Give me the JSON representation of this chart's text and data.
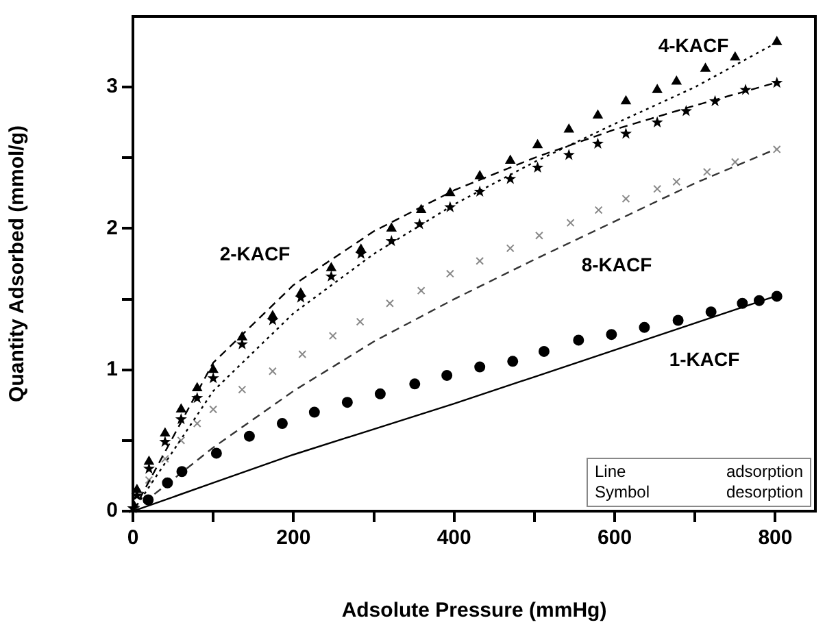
{
  "chart_data": {
    "type": "line",
    "xlabel": "Adsolute Pressure (mmHg)",
    "ylabel": "Quantity Adsorbed (mmol/g)",
    "xlim": [
      0,
      850
    ],
    "ylim": [
      0,
      3.5
    ],
    "xticks": [
      0,
      {
        "value": 100,
        "label": null
      },
      200,
      {
        "value": 300,
        "label": null
      },
      400,
      {
        "value": 500,
        "label": null
      },
      600,
      {
        "value": 700,
        "label": null
      },
      800
    ],
    "yticks": [
      0,
      {
        "value": 0.5,
        "label": null
      },
      1,
      {
        "value": 1.5,
        "label": null
      },
      2,
      {
        "value": 2.5,
        "label": null
      },
      3
    ],
    "grid": false,
    "legend": false,
    "series": [
      {
        "color": "#000000",
        "line_style": "solid",
        "marker": "none",
        "x": [
          0,
          100,
          200,
          300,
          400,
          500,
          600,
          700,
          800
        ],
        "values": [
          0,
          0.2,
          0.4,
          0.58,
          0.76,
          0.95,
          1.14,
          1.33,
          1.52
        ]
      },
      {
        "type": "scatter",
        "color": "#000000",
        "marker": "circle",
        "x": [
          19,
          43,
          61,
          104,
          145,
          186,
          226,
          267,
          308,
          351,
          391,
          432,
          473,
          512,
          555,
          596,
          637,
          679,
          720,
          759,
          780,
          802
        ],
        "values": [
          0.08,
          0.2,
          0.28,
          0.41,
          0.53,
          0.62,
          0.7,
          0.77,
          0.83,
          0.9,
          0.96,
          1.02,
          1.06,
          1.13,
          1.21,
          1.25,
          1.3,
          1.35,
          1.41,
          1.47,
          1.49,
          1.52
        ]
      },
      {
        "color": "#000000",
        "line_style": "dashed",
        "marker": "none",
        "x": [
          0,
          100,
          200,
          300,
          400,
          500,
          600,
          700,
          800
        ],
        "values": [
          0,
          1.05,
          1.6,
          1.98,
          2.27,
          2.5,
          2.7,
          2.87,
          3.03
        ]
      },
      {
        "type": "scatter",
        "color": "#000000",
        "marker": "star",
        "x": [
          0,
          5,
          20,
          40,
          60,
          80,
          100,
          136,
          174,
          209,
          247,
          284,
          322,
          357,
          395,
          432,
          470,
          504,
          543,
          579,
          614,
          653,
          689,
          725,
          763,
          802
        ],
        "values": [
          0.02,
          0.11,
          0.3,
          0.49,
          0.65,
          0.8,
          0.94,
          1.18,
          1.35,
          1.51,
          1.66,
          1.82,
          1.91,
          2.03,
          2.15,
          2.26,
          2.35,
          2.43,
          2.52,
          2.6,
          2.67,
          2.75,
          2.83,
          2.9,
          2.98,
          3.03
        ]
      },
      {
        "color": "#000000",
        "line_style": "dotted",
        "marker": "none",
        "x": [
          0,
          100,
          200,
          300,
          400,
          500,
          600,
          700,
          800
        ],
        "values": [
          0,
          0.85,
          1.4,
          1.82,
          2.17,
          2.47,
          2.74,
          3.0,
          3.31
        ]
      },
      {
        "type": "scatter",
        "color": "#000000",
        "marker": "triangle",
        "x": [
          0,
          5,
          20,
          40,
          60,
          80,
          100,
          136,
          174,
          209,
          247,
          284,
          322,
          359,
          395,
          432,
          470,
          504,
          543,
          579,
          614,
          653,
          677,
          713,
          750,
          802
        ],
        "values": [
          0.05,
          0.15,
          0.35,
          0.55,
          0.72,
          0.87,
          1.0,
          1.23,
          1.38,
          1.54,
          1.72,
          1.85,
          2.0,
          2.13,
          2.25,
          2.37,
          2.48,
          2.59,
          2.7,
          2.8,
          2.9,
          2.98,
          3.04,
          3.13,
          3.21,
          3.32
        ]
      },
      {
        "color": "#333333",
        "line_style": "dashed",
        "marker": "none",
        "x": [
          0,
          100,
          200,
          300,
          400,
          500,
          600,
          700,
          800
        ],
        "values": [
          0,
          0.45,
          0.85,
          1.2,
          1.5,
          1.78,
          2.05,
          2.32,
          2.56
        ]
      },
      {
        "type": "scatter",
        "color": "#888888",
        "marker": "cross",
        "x": [
          20,
          40,
          60,
          80,
          100,
          136,
          174,
          211,
          249,
          283,
          320,
          359,
          395,
          432,
          470,
          506,
          545,
          580,
          614,
          653,
          677,
          715,
          750,
          802
        ],
        "values": [
          0.22,
          0.37,
          0.5,
          0.62,
          0.72,
          0.86,
          0.99,
          1.11,
          1.24,
          1.34,
          1.47,
          1.56,
          1.68,
          1.77,
          1.86,
          1.95,
          2.04,
          2.13,
          2.21,
          2.28,
          2.33,
          2.4,
          2.47,
          2.56
        ]
      }
    ],
    "annotations": [
      "4-KACF",
      "2-KACF",
      "8-KACF",
      "1-KACF",
      "Line adsorption",
      "Symbol desorption"
    ]
  }
}
